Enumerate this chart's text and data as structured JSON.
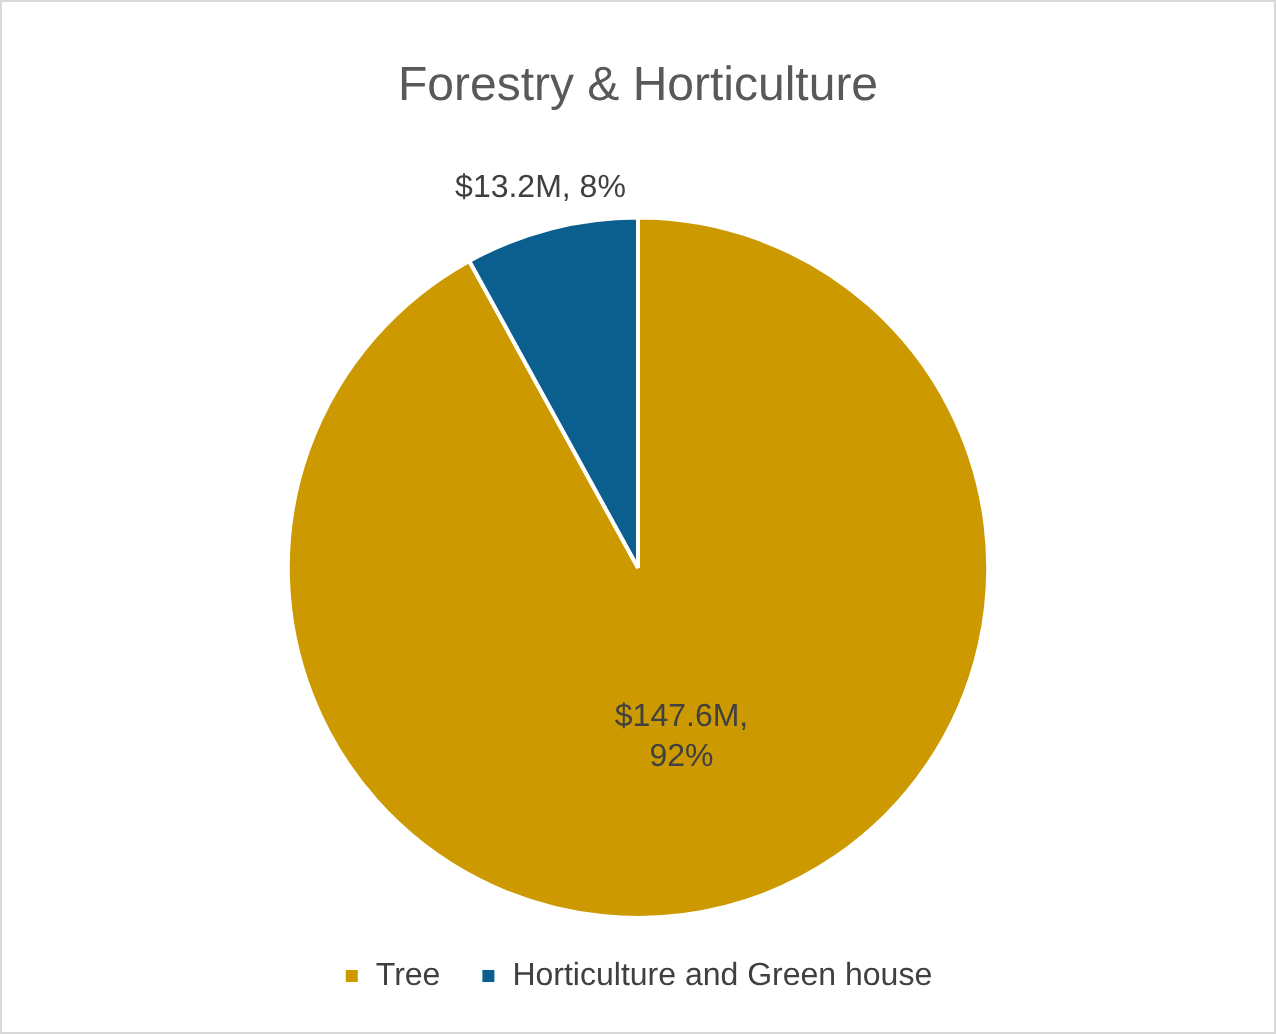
{
  "chart_data": {
    "type": "pie",
    "title": "Forestry & Horticulture",
    "categories": [
      "Tree",
      "Horticulture and Green house"
    ],
    "values": [
      92,
      8
    ],
    "colors": [
      "#cc9a00",
      "#0b5f8f"
    ],
    "value_labels": [
      "$147.6M, 92%",
      "$13.2M, 8%"
    ],
    "legend": "bottom"
  }
}
